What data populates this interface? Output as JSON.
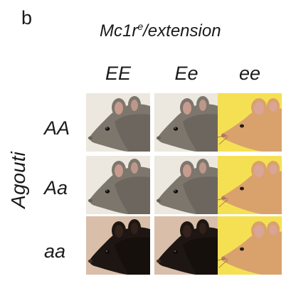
{
  "figure": {
    "panel_letter": "b",
    "gene_title_main": "Mc1r",
    "gene_title_sup": "e",
    "gene_title_rest": "/extension",
    "row_axis_label": "Agouti",
    "columns": [
      "EE",
      "Ee",
      "ee"
    ],
    "rows": [
      "AA",
      "Aa",
      "aa"
    ],
    "tiles": [
      [
        {
          "coat": "agouti-gray"
        },
        {
          "coat": "agouti-gray"
        },
        {
          "coat": "yellow"
        }
      ],
      [
        {
          "coat": "agouti-gray"
        },
        {
          "coat": "agouti-gray"
        },
        {
          "coat": "yellow"
        }
      ],
      [
        {
          "coat": "black"
        },
        {
          "coat": "black"
        },
        {
          "coat": "yellow"
        }
      ]
    ]
  },
  "colors": {
    "agouti_bg": "#ece8df",
    "agouti_fur": "#7d766c",
    "agouti_fur_dark": "#5b554d",
    "black_bg": "#d9bfa9",
    "black_fur": "#1e1613",
    "yellow_bg": "#f5e053",
    "yellow_fur": "#d9a26d",
    "ear_inner": "#d9a596"
  }
}
